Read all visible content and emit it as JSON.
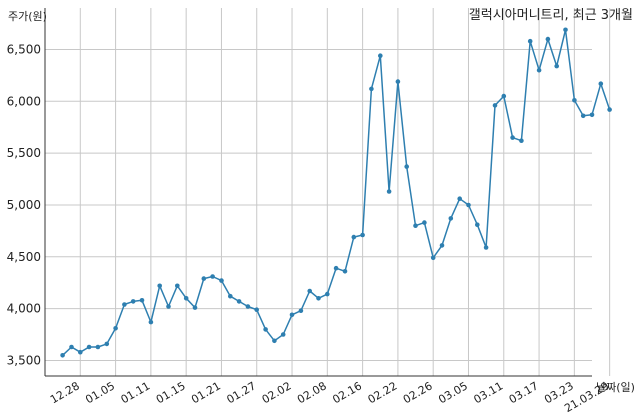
{
  "chart_data": {
    "type": "line",
    "title": "갤럭시아머니트리, 최근 3개월",
    "ylabel": "주가(원)",
    "xlabel": "날짜(일)",
    "ylim": [
      3350,
      6900
    ],
    "yticks": [
      3500,
      4000,
      4500,
      5000,
      5500,
      6000,
      6500
    ],
    "ytick_labels": [
      "3,500",
      "4,000",
      "4,500",
      "5,000",
      "5,500",
      "6,000",
      "6,500"
    ],
    "xlim": [
      -2,
      60
    ],
    "xticks": [
      {
        "i": 2,
        "label": "12.28"
      },
      {
        "i": 6,
        "label": "01.05"
      },
      {
        "i": 10,
        "label": "01.11"
      },
      {
        "i": 14,
        "label": "01.15"
      },
      {
        "i": 18,
        "label": "01.21"
      },
      {
        "i": 22,
        "label": "01.27"
      },
      {
        "i": 26,
        "label": "02.02"
      },
      {
        "i": 30,
        "label": "02.08"
      },
      {
        "i": 34,
        "label": "02.16"
      },
      {
        "i": 38,
        "label": "02.22"
      },
      {
        "i": 42,
        "label": "02.26"
      },
      {
        "i": 46,
        "label": "03.05"
      },
      {
        "i": 50,
        "label": "03.11"
      },
      {
        "i": 54,
        "label": "03.17"
      },
      {
        "i": 58,
        "label": "03.23"
      },
      {
        "i": 62,
        "label": "21.03.29"
      }
    ],
    "grid": true,
    "color": "#2e7fb0",
    "series": [
      {
        "values": [
          3550,
          3630,
          3580,
          3630,
          3630,
          3660,
          3810,
          4040,
          4070,
          4080,
          3870,
          4220,
          4020,
          4220,
          4100,
          4010,
          4290,
          4310,
          4270,
          4120,
          4070,
          4020,
          3990,
          3800,
          3690,
          3750,
          3940,
          3980,
          4170,
          4100,
          4140,
          4390,
          4360,
          4690,
          4710,
          6120,
          6440,
          5130,
          6190,
          5370,
          4800,
          4830,
          4490,
          4610,
          4870,
          5060,
          5000,
          4810,
          4590,
          5960,
          6050,
          5650,
          5620,
          6580,
          6300,
          6600,
          6340,
          6690,
          6010,
          5860,
          5870,
          6170,
          5920
        ]
      }
    ]
  }
}
